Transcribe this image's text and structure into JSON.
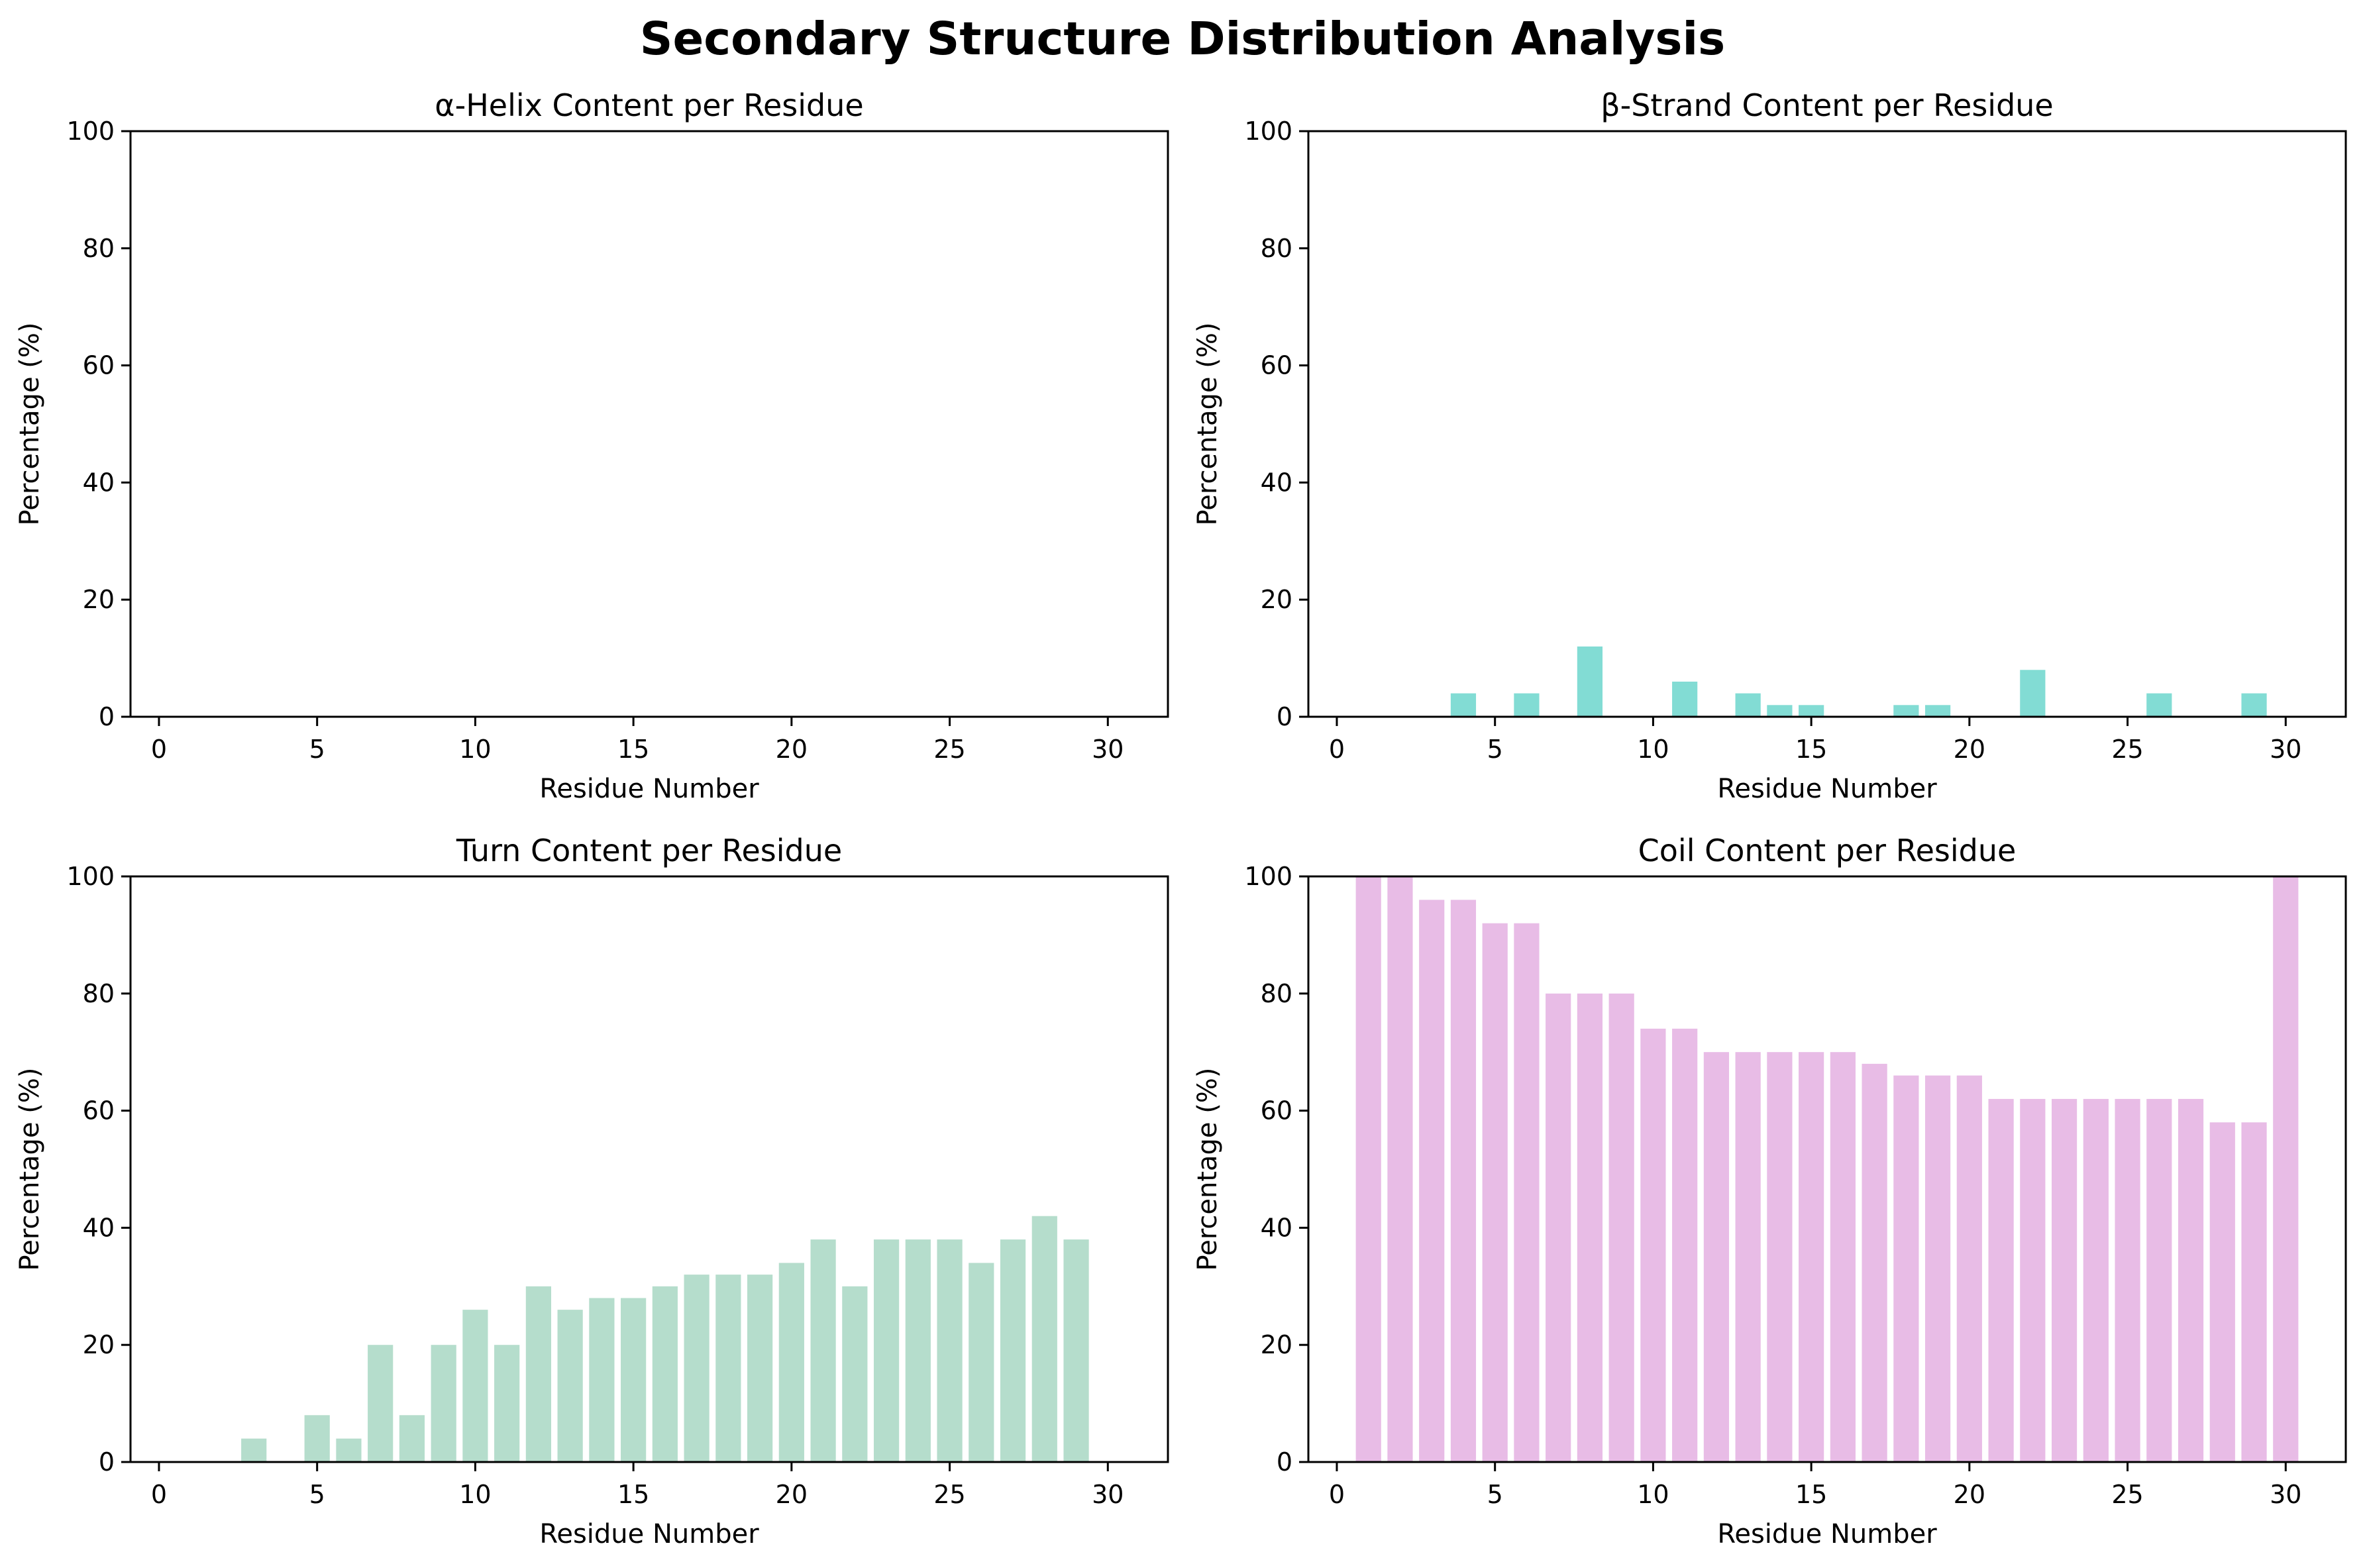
{
  "figure": {
    "suptitle": "Secondary Structure Distribution Analysis"
  },
  "chart_data": [
    {
      "type": "bar",
      "title": "α-Helix Content per Residue",
      "xlabel": "Residue Number",
      "ylabel": "Percentage (%)",
      "color": "#45B7D1",
      "x": [
        1,
        2,
        3,
        4,
        5,
        6,
        7,
        8,
        9,
        10,
        11,
        12,
        13,
        14,
        15,
        16,
        17,
        18,
        19,
        20,
        21,
        22,
        23,
        24,
        25,
        26,
        27,
        28,
        29,
        30
      ],
      "values": [
        0,
        0,
        0,
        0,
        0,
        0,
        0,
        0,
        0,
        0,
        0,
        0,
        0,
        0,
        0,
        0,
        0,
        0,
        0,
        0,
        0,
        0,
        0,
        0,
        0,
        0,
        0,
        0,
        0,
        0
      ],
      "xlim": [
        -0.9,
        31.9
      ],
      "ylim": [
        0,
        100
      ],
      "xticks": [
        "0",
        "5",
        "10",
        "15",
        "20",
        "25",
        "30"
      ],
      "yticks": [
        "0",
        "20",
        "40",
        "60",
        "80",
        "100"
      ],
      "grid": false
    },
    {
      "type": "bar",
      "title": "β-Strand Content per Residue",
      "xlabel": "Residue Number",
      "ylabel": "Percentage (%)",
      "color": "#82DCD4",
      "x": [
        1,
        2,
        3,
        4,
        5,
        6,
        7,
        8,
        9,
        10,
        11,
        12,
        13,
        14,
        15,
        16,
        17,
        18,
        19,
        20,
        21,
        22,
        23,
        24,
        25,
        26,
        27,
        28,
        29,
        30
      ],
      "values": [
        0,
        0,
        0,
        4,
        0,
        4,
        0,
        12,
        0,
        0,
        6,
        0,
        4,
        2,
        2,
        0,
        0,
        2,
        2,
        0,
        0,
        8,
        0,
        0,
        0,
        4,
        0,
        0,
        4,
        0
      ],
      "xlim": [
        -0.9,
        31.9
      ],
      "ylim": [
        0,
        100
      ],
      "xticks": [
        "0",
        "5",
        "10",
        "15",
        "20",
        "25",
        "30"
      ],
      "yticks": [
        "0",
        "20",
        "40",
        "60",
        "80",
        "100"
      ],
      "grid": false
    },
    {
      "type": "bar",
      "title": "Turn Content per Residue",
      "xlabel": "Residue Number",
      "ylabel": "Percentage (%)",
      "color": "#B5DDCC",
      "x": [
        1,
        2,
        3,
        4,
        5,
        6,
        7,
        8,
        9,
        10,
        11,
        12,
        13,
        14,
        15,
        16,
        17,
        18,
        19,
        20,
        21,
        22,
        23,
        24,
        25,
        26,
        27,
        28,
        29,
        30
      ],
      "values": [
        0,
        0,
        4,
        0,
        8,
        4,
        20,
        8,
        20,
        26,
        20,
        30,
        26,
        28,
        28,
        30,
        32,
        32,
        32,
        34,
        38,
        30,
        38,
        38,
        38,
        34,
        38,
        42,
        38,
        0
      ],
      "xlim": [
        -0.9,
        31.9
      ],
      "ylim": [
        0,
        100
      ],
      "xticks": [
        "0",
        "5",
        "10",
        "15",
        "20",
        "25",
        "30"
      ],
      "yticks": [
        "0",
        "20",
        "40",
        "60",
        "80",
        "100"
      ],
      "grid": false
    },
    {
      "type": "bar",
      "title": "Coil Content per Residue",
      "xlabel": "Residue Number",
      "ylabel": "Percentage (%)",
      "color": "#E8BCE6",
      "x": [
        1,
        2,
        3,
        4,
        5,
        6,
        7,
        8,
        9,
        10,
        11,
        12,
        13,
        14,
        15,
        16,
        17,
        18,
        19,
        20,
        21,
        22,
        23,
        24,
        25,
        26,
        27,
        28,
        29,
        30
      ],
      "values": [
        100,
        100,
        96,
        96,
        92,
        92,
        80,
        80,
        80,
        74,
        74,
        70,
        70,
        70,
        70,
        70,
        68,
        66,
        66,
        66,
        62,
        62,
        62,
        62,
        62,
        62,
        62,
        58,
        58,
        100
      ],
      "xlim": [
        -0.9,
        31.9
      ],
      "ylim": [
        0,
        100
      ],
      "xticks": [
        "0",
        "5",
        "10",
        "15",
        "20",
        "25",
        "30"
      ],
      "yticks": [
        "0",
        "20",
        "40",
        "60",
        "80",
        "100"
      ],
      "grid": false
    }
  ]
}
